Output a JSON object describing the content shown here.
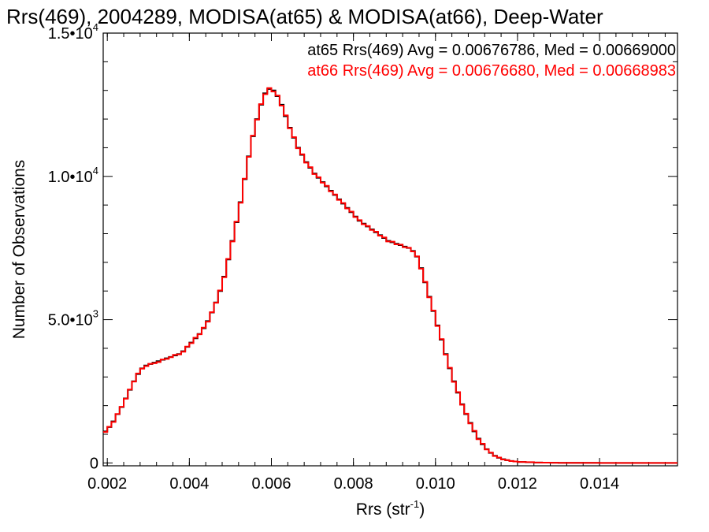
{
  "chart_data": {
    "type": "line",
    "step": true,
    "title": "Rrs(469), 2004289, MODISA(at65) & MODISA(at66), Deep-Water",
    "xlabel": {
      "base": "Rrs (str",
      "sup": "-1",
      "close": ")"
    },
    "ylabel": "Number of Observations",
    "xlim": [
      0.0019,
      0.0159
    ],
    "ylim": [
      -100,
      15000
    ],
    "x_ticks": [
      {
        "value": 0.002,
        "label": "0.002"
      },
      {
        "value": 0.004,
        "label": "0.004"
      },
      {
        "value": 0.006,
        "label": "0.006"
      },
      {
        "value": 0.008,
        "label": "0.008"
      },
      {
        "value": 0.01,
        "label": "0.010"
      },
      {
        "value": 0.012,
        "label": "0.012"
      },
      {
        "value": 0.014,
        "label": "0.014"
      }
    ],
    "y_ticks": [
      {
        "value": 0,
        "label": "0",
        "exp": ""
      },
      {
        "value": 5000,
        "label": "5.0•10",
        "exp": "3"
      },
      {
        "value": 10000,
        "label": "1.0•10",
        "exp": "4"
      },
      {
        "value": 15000,
        "label": "1.5•10",
        "exp": "4"
      }
    ],
    "grid": false,
    "series": [
      {
        "name": "at65",
        "legend": "at65 Rrs(469) Avg = 0.00676786, Med = 0.00669000",
        "color": "#000000",
        "x": [
          0.0019,
          0.002,
          0.0021,
          0.0022,
          0.0023,
          0.0024,
          0.0025,
          0.0026,
          0.0027,
          0.0028,
          0.0029,
          0.003,
          0.0031,
          0.0032,
          0.0033,
          0.0034,
          0.0035,
          0.0036,
          0.0037,
          0.0038,
          0.0039,
          0.004,
          0.0041,
          0.0042,
          0.0043,
          0.0044,
          0.0045,
          0.0046,
          0.0047,
          0.0048,
          0.0049,
          0.005,
          0.0051,
          0.0052,
          0.0053,
          0.0054,
          0.0055,
          0.0056,
          0.0057,
          0.0058,
          0.0059,
          0.006,
          0.0061,
          0.0062,
          0.0063,
          0.0064,
          0.0065,
          0.0066,
          0.0067,
          0.0068,
          0.0069,
          0.007,
          0.0071,
          0.0072,
          0.0073,
          0.0074,
          0.0075,
          0.0076,
          0.0077,
          0.0078,
          0.0079,
          0.008,
          0.0081,
          0.0082,
          0.0083,
          0.0084,
          0.0085,
          0.0086,
          0.0087,
          0.0088,
          0.0089,
          0.009,
          0.0091,
          0.0092,
          0.0093,
          0.0094,
          0.0095,
          0.0096,
          0.0097,
          0.0098,
          0.0099,
          0.01,
          0.0101,
          0.0102,
          0.0103,
          0.0104,
          0.0105,
          0.0106,
          0.0107,
          0.0108,
          0.0109,
          0.011,
          0.0111,
          0.0112,
          0.0113,
          0.0114,
          0.0115,
          0.0116,
          0.0117,
          0.0118,
          0.0119,
          0.012,
          0.0122,
          0.0124,
          0.0126,
          0.0128,
          0.013,
          0.0135,
          0.014,
          0.0145,
          0.015,
          0.0155,
          0.0159
        ],
        "y": [
          1100,
          1250,
          1450,
          1700,
          1950,
          2250,
          2550,
          2850,
          3100,
          3300,
          3400,
          3450,
          3500,
          3550,
          3600,
          3650,
          3700,
          3750,
          3800,
          3900,
          4050,
          4200,
          4350,
          4500,
          4700,
          4950,
          5250,
          5600,
          6000,
          6500,
          7100,
          7750,
          8400,
          9100,
          9900,
          10700,
          11400,
          12000,
          12500,
          12900,
          13050,
          13000,
          12800,
          12500,
          12100,
          11700,
          11350,
          11000,
          10750,
          10500,
          10300,
          10100,
          9950,
          9800,
          9650,
          9500,
          9350,
          9200,
          9050,
          8900,
          8750,
          8600,
          8450,
          8350,
          8250,
          8150,
          8050,
          7950,
          7850,
          7750,
          7700,
          7650,
          7600,
          7550,
          7500,
          7400,
          7200,
          6800,
          6300,
          5800,
          5300,
          4800,
          4300,
          3800,
          3300,
          2850,
          2450,
          2050,
          1700,
          1400,
          1100,
          850,
          650,
          480,
          350,
          250,
          180,
          130,
          95,
          70,
          50,
          35,
          25,
          15,
          10,
          5,
          3,
          2,
          1,
          0,
          0,
          0,
          0
        ]
      },
      {
        "name": "at66",
        "legend": "at66 Rrs(469) Avg = 0.00676680, Med = 0.00668983",
        "color": "#ff0000",
        "x": [
          0.0019,
          0.002,
          0.0021,
          0.0022,
          0.0023,
          0.0024,
          0.0025,
          0.0026,
          0.0027,
          0.0028,
          0.0029,
          0.003,
          0.0031,
          0.0032,
          0.0033,
          0.0034,
          0.0035,
          0.0036,
          0.0037,
          0.0038,
          0.0039,
          0.004,
          0.0041,
          0.0042,
          0.0043,
          0.0044,
          0.0045,
          0.0046,
          0.0047,
          0.0048,
          0.0049,
          0.005,
          0.0051,
          0.0052,
          0.0053,
          0.0054,
          0.0055,
          0.0056,
          0.0057,
          0.0058,
          0.0059,
          0.006,
          0.0061,
          0.0062,
          0.0063,
          0.0064,
          0.0065,
          0.0066,
          0.0067,
          0.0068,
          0.0069,
          0.007,
          0.0071,
          0.0072,
          0.0073,
          0.0074,
          0.0075,
          0.0076,
          0.0077,
          0.0078,
          0.0079,
          0.008,
          0.0081,
          0.0082,
          0.0083,
          0.0084,
          0.0085,
          0.0086,
          0.0087,
          0.0088,
          0.0089,
          0.009,
          0.0091,
          0.0092,
          0.0093,
          0.0094,
          0.0095,
          0.0096,
          0.0097,
          0.0098,
          0.0099,
          0.01,
          0.0101,
          0.0102,
          0.0103,
          0.0104,
          0.0105,
          0.0106,
          0.0107,
          0.0108,
          0.0109,
          0.011,
          0.0111,
          0.0112,
          0.0113,
          0.0114,
          0.0115,
          0.0116,
          0.0117,
          0.0118,
          0.0119,
          0.012,
          0.0122,
          0.0124,
          0.0126,
          0.0128,
          0.013,
          0.0135,
          0.014,
          0.0145,
          0.015,
          0.0155,
          0.0159
        ],
        "y": [
          1080,
          1260,
          1430,
          1710,
          1960,
          2240,
          2560,
          2840,
          3120,
          3290,
          3380,
          3460,
          3480,
          3520,
          3610,
          3630,
          3690,
          3770,
          3790,
          3880,
          4060,
          4180,
          4370,
          4490,
          4720,
          4930,
          5260,
          5590,
          6020,
          6480,
          7120,
          7730,
          8420,
          9080,
          9920,
          10680,
          11420,
          11980,
          12520,
          12870,
          13080,
          12960,
          12820,
          12470,
          12130,
          11680,
          11370,
          10980,
          10770,
          10480,
          10320,
          10080,
          9970,
          9780,
          9670,
          9480,
          9370,
          9180,
          9070,
          8880,
          8770,
          8580,
          8470,
          8330,
          8270,
          8130,
          8070,
          7930,
          7870,
          7730,
          7720,
          7630,
          7620,
          7530,
          7510,
          7380,
          7210,
          6780,
          6320,
          5780,
          5320,
          4780,
          4320,
          3780,
          3320,
          2830,
          2470,
          2030,
          1720,
          1380,
          1120,
          830,
          670,
          470,
          360,
          240,
          190,
          120,
          100,
          65,
          52,
          33,
          26,
          14,
          11,
          5,
          3,
          2,
          1,
          0,
          0,
          0,
          0
        ]
      }
    ]
  }
}
